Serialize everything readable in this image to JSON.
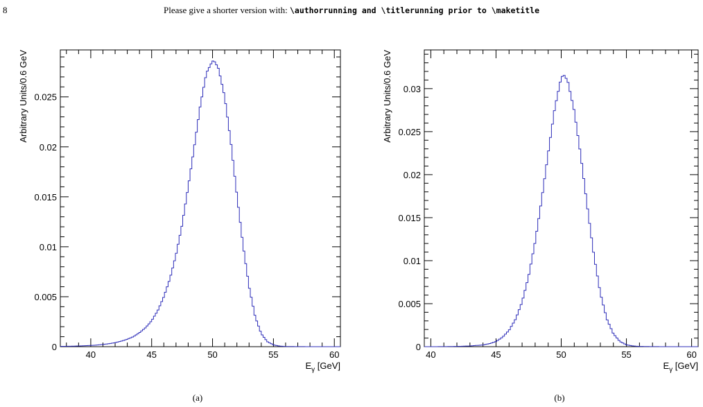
{
  "page": {
    "number": "8",
    "running_head_prefix": "Please give a shorter version with: ",
    "running_head_code": "\\authorrunning and \\titlerunning prior to \\maketitle"
  },
  "chart_data": [
    {
      "type": "line",
      "caption": "(a)",
      "xlabel": "E",
      "xlabel_sub": "γ",
      "xlabel_unit": " [GeV]",
      "ylabel": "Arbitrary Units/0.6 GeV",
      "xlim": [
        37.5,
        60.5
      ],
      "ylim": [
        0,
        0.0297
      ],
      "xticks": [
        40,
        45,
        50,
        55,
        60
      ],
      "yticks": [
        0,
        0.005,
        0.01,
        0.015,
        0.02,
        0.025
      ],
      "ytick_labels": [
        "0",
        "0.005",
        "0.01",
        "0.015",
        "0.02",
        "0.025"
      ],
      "color": "#2b2bb8",
      "series": [
        {
          "x": [
            37.5,
            38.0,
            38.5,
            39.0,
            39.5,
            40.0,
            40.5,
            41.0,
            41.5,
            42.0,
            42.5,
            43.0,
            43.5,
            44.0,
            44.5,
            45.0,
            45.5,
            46.0,
            46.5,
            47.0,
            47.5,
            48.0,
            48.5,
            49.0,
            49.5,
            50.0,
            50.2,
            50.5,
            51.0,
            51.5,
            52.0,
            52.5,
            53.0,
            53.5,
            54.0,
            54.5,
            55.0,
            55.5,
            56.0,
            57.0,
            58.0,
            59.0,
            60.0
          ],
          "y": [
            3e-05,
            4e-05,
            5e-05,
            7e-05,
            9e-05,
            0.00012,
            0.00016,
            0.00022,
            0.0003,
            0.0004,
            0.00055,
            0.00075,
            0.001,
            0.0014,
            0.0019,
            0.0026,
            0.0036,
            0.005,
            0.0068,
            0.0092,
            0.0122,
            0.016,
            0.02,
            0.0242,
            0.0274,
            0.0286,
            0.0285,
            0.0278,
            0.025,
            0.0205,
            0.0152,
            0.0102,
            0.006,
            0.003,
            0.0013,
            0.0005,
            0.00018,
            6e-05,
            2e-05,
            1e-05,
            0.0,
            0.0,
            0.0
          ]
        }
      ]
    },
    {
      "type": "line",
      "caption": "(b)",
      "xlabel": "E",
      "xlabel_sub": "γ",
      "xlabel_unit": " [GeV]",
      "ylabel": "Arbitrary Units/0.6 GeV",
      "xlim": [
        39.5,
        60.5
      ],
      "ylim": [
        0,
        0.0345
      ],
      "xticks": [
        40,
        45,
        50,
        55,
        60
      ],
      "yticks": [
        0,
        0.005,
        0.01,
        0.015,
        0.02,
        0.025,
        0.03
      ],
      "ytick_labels": [
        "0",
        "0.005",
        "0.01",
        "0.015",
        "0.02",
        "0.025",
        "0.03"
      ],
      "color": "#2b2bb8",
      "series": [
        {
          "x": [
            39.5,
            40.0,
            41.0,
            42.0,
            43.0,
            44.0,
            44.5,
            45.0,
            45.5,
            46.0,
            46.5,
            47.0,
            47.5,
            48.0,
            48.5,
            49.0,
            49.5,
            50.0,
            50.2,
            50.5,
            51.0,
            51.5,
            52.0,
            52.5,
            53.0,
            53.5,
            54.0,
            54.5,
            55.0,
            55.5,
            56.0,
            57.0,
            58.0,
            59.0,
            60.0
          ],
          "y": [
            0.0,
            0.0,
            1e-05,
            3e-05,
            8e-05,
            0.0002,
            0.00035,
            0.0006,
            0.0011,
            0.0019,
            0.0032,
            0.0052,
            0.0082,
            0.0122,
            0.0171,
            0.0225,
            0.0277,
            0.0313,
            0.0316,
            0.0309,
            0.0274,
            0.0222,
            0.0163,
            0.0107,
            0.0062,
            0.0032,
            0.0015,
            0.0006,
            0.00022,
            8e-05,
            3e-05,
            1e-05,
            0.0,
            0.0,
            0.0
          ]
        }
      ]
    }
  ]
}
